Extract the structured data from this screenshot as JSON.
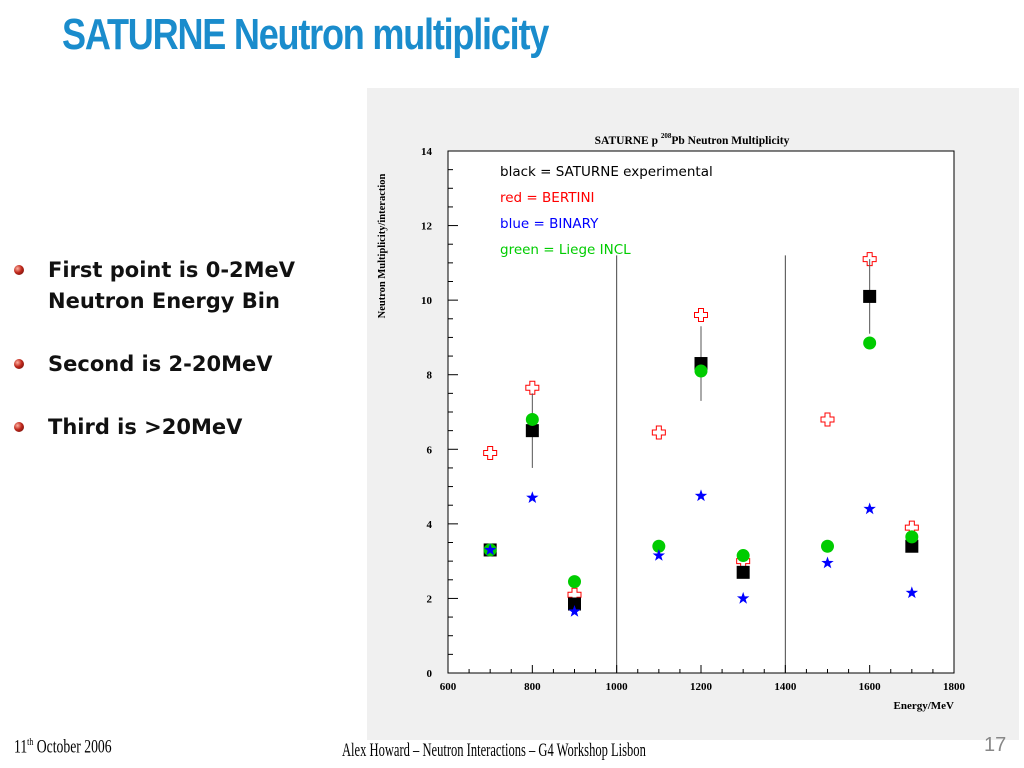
{
  "slide": {
    "title": "SATURNE Neutron multiplicity",
    "bullets": [
      "First point is 0-2MeV Neutron Energy Bin",
      "Second is 2-20MeV",
      "Third is >20MeV"
    ],
    "footer": {
      "date_day": "11",
      "date_suffix": "th",
      "date_rest": " October 2006",
      "center": "Alex Howard – Neutron Interactions – G4 Workshop Lisbon",
      "page": "17"
    }
  },
  "chart_data": {
    "type": "scatter",
    "title_parts": {
      "before": "SATURNE p ",
      "superscript": "208",
      "after": "Pb Neutron Multiplicity"
    },
    "xlabel": "Energy/MeV",
    "ylabel": "Neutron Multiplicity/interaction",
    "xlim": [
      600,
      1800
    ],
    "ylim": [
      0,
      14
    ],
    "xticks": [
      600,
      800,
      1000,
      1200,
      1400,
      1600,
      1800
    ],
    "yticks": [
      0,
      2,
      4,
      6,
      8,
      10,
      12,
      14
    ],
    "separators_x": [
      1000,
      1400
    ],
    "legend": [
      {
        "text": "black = SATURNE experimental",
        "color": "#000000"
      },
      {
        "text": "red = BERTINI",
        "color": "#ff0000"
      },
      {
        "text": "blue = BINARY",
        "color": "#0000ff"
      },
      {
        "text": "green = Liege INCL",
        "color": "#00cc00"
      }
    ],
    "series": [
      {
        "name": "SATURNE experimental",
        "marker": "square",
        "color": "#000000",
        "points": [
          {
            "x": 700,
            "y": 3.3
          },
          {
            "x": 800,
            "y": 6.5,
            "err": 1.0
          },
          {
            "x": 900,
            "y": 1.85
          },
          {
            "x": 1200,
            "y": 8.3,
            "err": 1.0
          },
          {
            "x": 1300,
            "y": 2.7
          },
          {
            "x": 1600,
            "y": 10.1,
            "err": 1.0
          },
          {
            "x": 1700,
            "y": 3.4
          }
        ]
      },
      {
        "name": "BERTINI",
        "marker": "cross",
        "color": "#ff0000",
        "points": [
          {
            "x": 700,
            "y": 5.9
          },
          {
            "x": 800,
            "y": 7.65
          },
          {
            "x": 900,
            "y": 2.1
          },
          {
            "x": 1100,
            "y": 6.45
          },
          {
            "x": 1200,
            "y": 9.6
          },
          {
            "x": 1300,
            "y": 3.0
          },
          {
            "x": 1500,
            "y": 6.8
          },
          {
            "x": 1600,
            "y": 11.1
          },
          {
            "x": 1700,
            "y": 3.9
          }
        ]
      },
      {
        "name": "BINARY",
        "marker": "star",
        "color": "#0000ff",
        "points": [
          {
            "x": 700,
            "y": 3.3
          },
          {
            "x": 800,
            "y": 4.7
          },
          {
            "x": 900,
            "y": 1.65
          },
          {
            "x": 1100,
            "y": 3.15
          },
          {
            "x": 1200,
            "y": 4.75
          },
          {
            "x": 1300,
            "y": 2.0
          },
          {
            "x": 1500,
            "y": 2.95
          },
          {
            "x": 1600,
            "y": 4.4
          },
          {
            "x": 1700,
            "y": 2.15
          }
        ]
      },
      {
        "name": "Liege INCL",
        "marker": "circle",
        "color": "#00cc00",
        "points": [
          {
            "x": 700,
            "y": 3.3
          },
          {
            "x": 800,
            "y": 6.8
          },
          {
            "x": 900,
            "y": 2.45
          },
          {
            "x": 1100,
            "y": 3.4
          },
          {
            "x": 1200,
            "y": 8.1
          },
          {
            "x": 1300,
            "y": 3.15
          },
          {
            "x": 1500,
            "y": 3.4
          },
          {
            "x": 1600,
            "y": 8.85
          },
          {
            "x": 1700,
            "y": 3.65
          }
        ]
      }
    ]
  }
}
